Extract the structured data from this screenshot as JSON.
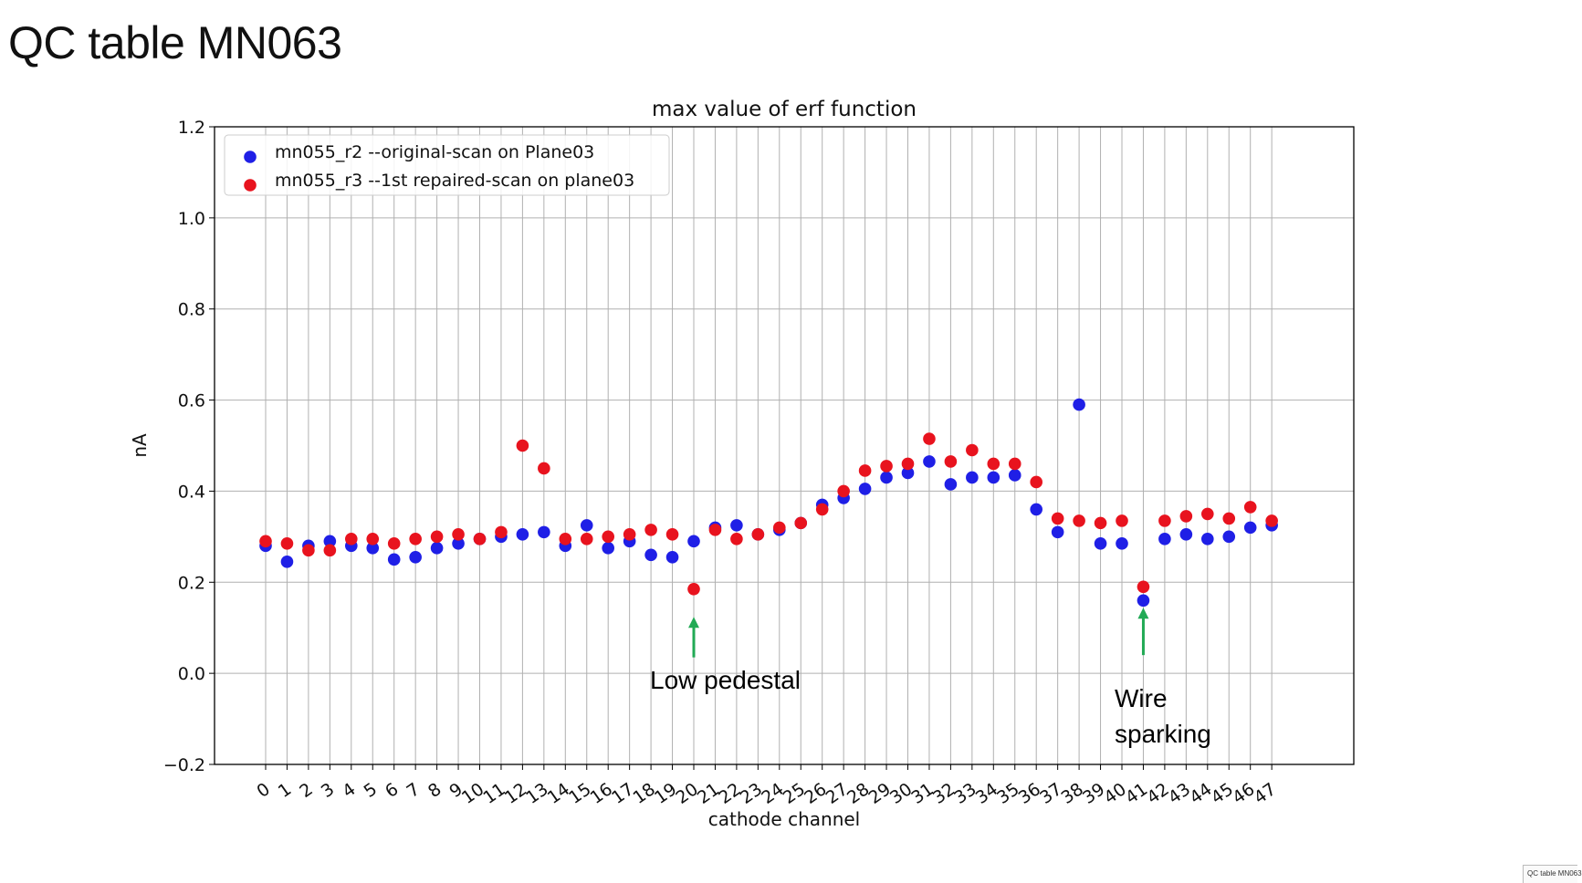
{
  "slide": {
    "title": "QC table MN063",
    "thumbnail_label": "QC table MN063"
  },
  "chart_data": {
    "type": "scatter",
    "title": "max value of erf function",
    "xlabel": "cathode channel",
    "ylabel": "nA",
    "ylim": [
      -0.2,
      1.2
    ],
    "yticks": [
      -0.2,
      0.0,
      0.2,
      0.4,
      0.6,
      0.8,
      1.0,
      1.2
    ],
    "ytick_labels": [
      "−0.2",
      "0.0",
      "0.2",
      "0.4",
      "0.6",
      "0.8",
      "1.0",
      "1.2"
    ],
    "x": [
      0,
      1,
      2,
      3,
      4,
      5,
      6,
      7,
      8,
      9,
      10,
      11,
      12,
      13,
      14,
      15,
      16,
      17,
      18,
      19,
      20,
      21,
      22,
      23,
      24,
      25,
      26,
      27,
      28,
      29,
      30,
      31,
      32,
      33,
      34,
      35,
      36,
      37,
      38,
      39,
      40,
      41,
      42,
      43,
      44,
      45,
      46,
      47
    ],
    "xtick_labels": [
      "0",
      "1",
      "2",
      "3",
      "4",
      "5",
      "6",
      "7",
      "8",
      "9",
      "10",
      "11",
      "12",
      "13",
      "14",
      "15",
      "16",
      "17",
      "18",
      "19",
      "20",
      "21",
      "22",
      "23",
      "24",
      "25",
      "26",
      "27",
      "28",
      "29",
      "30",
      "31",
      "32",
      "33",
      "34",
      "35",
      "36",
      "37",
      "38",
      "39",
      "40",
      "41",
      "42",
      "43",
      "44",
      "45",
      "46",
      "47"
    ],
    "grid": true,
    "legend_position": "top-left",
    "series": [
      {
        "name": "mn055_r2 --original-scan on Plane03",
        "color": "#1f1fe6",
        "values": [
          0.28,
          0.245,
          0.28,
          0.29,
          0.28,
          0.275,
          0.25,
          0.255,
          0.275,
          0.285,
          0.295,
          0.3,
          0.305,
          0.31,
          0.28,
          0.325,
          0.275,
          0.29,
          0.26,
          0.255,
          0.29,
          0.32,
          0.325,
          0.305,
          0.315,
          0.33,
          0.37,
          0.385,
          0.405,
          0.43,
          0.44,
          0.465,
          0.415,
          0.43,
          0.43,
          0.435,
          0.36,
          0.31,
          0.59,
          0.285,
          0.285,
          0.16,
          0.295,
          0.305,
          0.295,
          0.3,
          0.32,
          0.325
        ]
      },
      {
        "name": "mn055_r3 --1st repaired-scan on plane03",
        "color": "#e8131e",
        "values": [
          0.29,
          0.285,
          0.27,
          0.27,
          0.295,
          0.295,
          0.285,
          0.295,
          0.3,
          0.305,
          0.295,
          0.31,
          0.5,
          0.45,
          0.295,
          0.295,
          0.3,
          0.305,
          0.315,
          0.305,
          0.185,
          0.315,
          0.295,
          0.305,
          0.32,
          0.33,
          0.36,
          0.4,
          0.445,
          0.455,
          0.46,
          0.515,
          0.465,
          0.49,
          0.46,
          0.46,
          0.42,
          0.34,
          0.335,
          0.33,
          0.335,
          0.19,
          0.335,
          0.345,
          0.35,
          0.34,
          0.365,
          0.335
        ]
      }
    ],
    "annotations": [
      {
        "lines": [
          "Low pedestal"
        ],
        "target_channel": 20,
        "arrow_color": "#22aa55"
      },
      {
        "lines": [
          "Wire",
          "sparking"
        ],
        "target_channel": 41,
        "arrow_color": "#22aa55"
      }
    ]
  }
}
